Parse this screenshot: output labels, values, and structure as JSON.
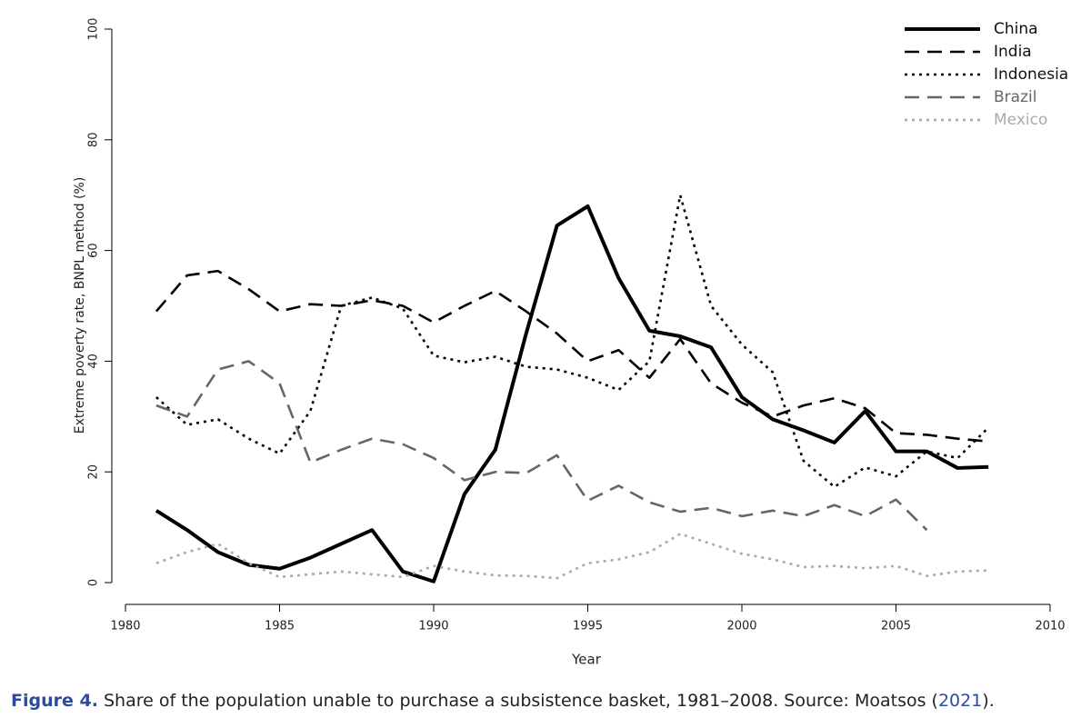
{
  "chart_data": {
    "type": "line",
    "xlabel": "Year",
    "ylabel": "Extreme poverty rate, BNPL method (%)",
    "x": [
      1981,
      1982,
      1983,
      1984,
      1985,
      1986,
      1987,
      1988,
      1989,
      1990,
      1991,
      1992,
      1993,
      1994,
      1995,
      1996,
      1997,
      1998,
      1999,
      2000,
      2001,
      2002,
      2003,
      2004,
      2005,
      2006,
      2007,
      2008
    ],
    "series": [
      {
        "name": "China",
        "color": "#000000",
        "dash": "solid",
        "values": [
          13,
          9.5,
          5.5,
          3.2,
          2.5,
          4.5,
          7,
          9.5,
          2,
          0.2,
          16,
          24,
          45,
          64.5,
          68,
          55,
          45.5,
          44.5,
          42.5,
          33.5,
          29.5,
          27.5,
          25.3,
          31,
          23.7,
          23.7,
          20.7,
          20.9
        ]
      },
      {
        "name": "India",
        "color": "#000000",
        "dash": "dashed",
        "values": [
          49,
          55.5,
          56.3,
          53,
          49,
          50.3,
          50,
          51,
          50,
          47,
          50,
          52.7,
          49,
          45,
          40,
          42,
          37,
          44,
          36,
          32.5,
          30,
          32,
          33.3,
          31.5,
          27,
          26.7,
          26,
          25.5
        ]
      },
      {
        "name": "Indonesia",
        "color": "#000000",
        "dash": "dotted",
        "values": [
          33.5,
          28.5,
          29.5,
          26,
          23.3,
          31,
          50,
          51.5,
          49.5,
          41,
          39.8,
          40.8,
          39,
          38.5,
          37,
          34.8,
          40,
          70,
          50,
          43,
          38,
          22,
          17.3,
          20.8,
          19.2,
          23.7,
          22.5,
          28
        ]
      },
      {
        "name": "Brazil",
        "color": "#666666",
        "dash": "dashed",
        "values": [
          32,
          30,
          38.5,
          40,
          36,
          21.7,
          24,
          26,
          25,
          22.5,
          18.5,
          20,
          19.8,
          23,
          14.8,
          17.5,
          14.5,
          12.8,
          13.5,
          12,
          13,
          12,
          14,
          12,
          15,
          9.5,
          null,
          null
        ]
      },
      {
        "name": "Mexico",
        "color": "#aaaaaa",
        "dash": "dotted",
        "values": [
          3.5,
          5.5,
          7,
          3.5,
          1,
          1.5,
          2,
          1.5,
          1,
          3,
          2,
          1.3,
          1.2,
          0.8,
          3.5,
          4.2,
          5.5,
          8.8,
          7,
          5.2,
          4.2,
          2.8,
          3,
          2.6,
          3,
          1.2,
          2,
          2.2
        ]
      }
    ],
    "xlim": [
      1980,
      2010
    ],
    "xticks": [
      1980,
      1985,
      1990,
      1995,
      2000,
      2005,
      2010
    ],
    "ylim": [
      0,
      100
    ],
    "yticks": [
      0,
      20,
      40,
      60,
      80,
      100
    ],
    "legend": "upper right",
    "caption": {
      "label": "Figure 4.",
      "text": " Share of the population unable to purchase a subsistence basket, 1981–2008. Source: Moatsos (",
      "link": "2021",
      "end": ")."
    }
  }
}
